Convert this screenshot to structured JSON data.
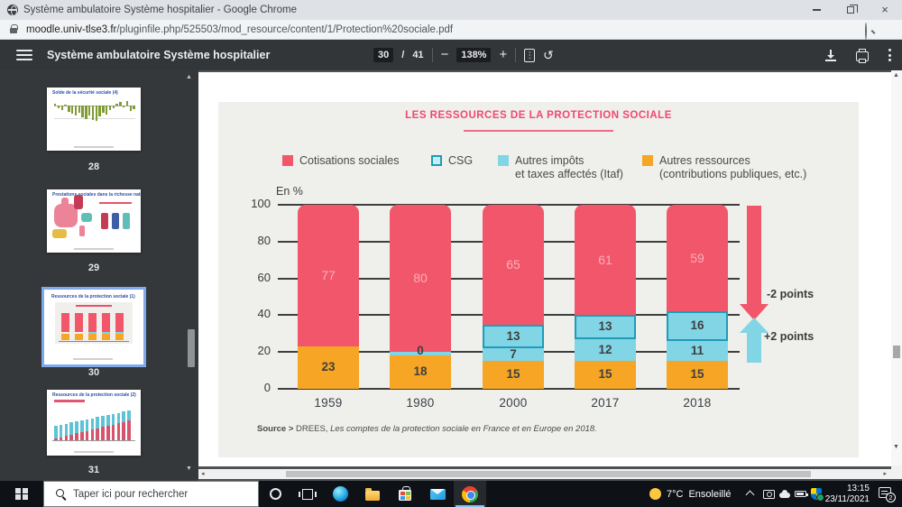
{
  "titlebar": {
    "title": "Système ambulatoire Système hospitalier - Google Chrome"
  },
  "urlbar": {
    "domain": "moodle.univ-tlse3.fr",
    "path": "/pluginfile.php/525503/mod_resource/content/1/Protection%20sociale.pdf"
  },
  "pdf_toolbar": {
    "doc_title": "Système ambulatoire Système hospitalier",
    "page_current": "30",
    "page_sep": "/",
    "page_total": "41",
    "zoom_out": "−",
    "zoom_value": "138%",
    "zoom_in": "+"
  },
  "sidebar": {
    "thumbnails": [
      {
        "page": "28",
        "title": "Solde de la sécurité sociale (4)",
        "kind": "green-bars",
        "selected": false
      },
      {
        "page": "29",
        "title": "Prestations sociales dans la richesse nationale",
        "kind": "map",
        "selected": false
      },
      {
        "page": "30",
        "title": "Ressources de la protection sociale (1)",
        "kind": "red-stack",
        "selected": true
      },
      {
        "page": "31",
        "title": "Ressources de la protection sociale (2)",
        "kind": "teal-bars",
        "selected": false
      }
    ]
  },
  "chart_data": {
    "type": "bar",
    "stacked": true,
    "title": "LES RESSOURCES DE LA PROTECTION SOCIALE",
    "unit_label": "En %",
    "categories": [
      "1959",
      "1980",
      "2000",
      "2017",
      "2018"
    ],
    "series": [
      {
        "name": "Cotisations sociales",
        "color": "#f2566a",
        "values": [
          77,
          80,
          65,
          61,
          59
        ]
      },
      {
        "name": "CSG",
        "color": "#82d5e5",
        "border_color": "#1e9cb8",
        "values": [
          0,
          0,
          13,
          13,
          16
        ]
      },
      {
        "name": "Autres impôts et taxes affectés (Itaf)",
        "color": "#82d5e5",
        "values": [
          0,
          2,
          7,
          12,
          11
        ]
      },
      {
        "name": "Autres ressources (contributions publiques, etc.)",
        "color": "#f6a524",
        "values": [
          23,
          18,
          15,
          15,
          15
        ]
      }
    ],
    "segment_labels": [
      [
        "77",
        "",
        "",
        "23"
      ],
      [
        "80",
        "0",
        "",
        "18"
      ],
      [
        "65",
        "13",
        "7",
        "15"
      ],
      [
        "61",
        "13",
        "12",
        "15"
      ],
      [
        "59",
        "16",
        "11",
        "15"
      ]
    ],
    "ylim": [
      0,
      100
    ],
    "yticks": [
      "0",
      "20",
      "40",
      "60",
      "80",
      "100"
    ],
    "grid": true,
    "legend_position": "top",
    "legend": [
      {
        "lines": [
          "Cotisations sociales"
        ],
        "swatch": "red"
      },
      {
        "lines": [
          "CSG"
        ],
        "swatch": "csg"
      },
      {
        "lines": [
          "Autres impôts",
          "et taxes affectés (Itaf)"
        ],
        "swatch": "cyan"
      },
      {
        "lines": [
          "Autres ressources",
          "(contributions publiques, etc.)"
        ],
        "swatch": "orange"
      }
    ],
    "annotations": [
      {
        "text": "-2 points",
        "direction": "down",
        "color": "#f2566a"
      },
      {
        "text": "+2 points",
        "direction": "up",
        "color": "#82d5e5"
      }
    ]
  },
  "source": {
    "prefix": "Source >",
    "org": " DREES, ",
    "ref": "Les comptes de la protection sociale en France et en Europe en 2018."
  },
  "taskbar": {
    "search_placeholder": "Taper ici pour rechercher",
    "weather": {
      "temp": "7°C",
      "desc": "Ensoleillé"
    },
    "clock": {
      "time": "13:15",
      "date": "23/11/2021"
    },
    "notifications": {
      "count": "2"
    }
  }
}
